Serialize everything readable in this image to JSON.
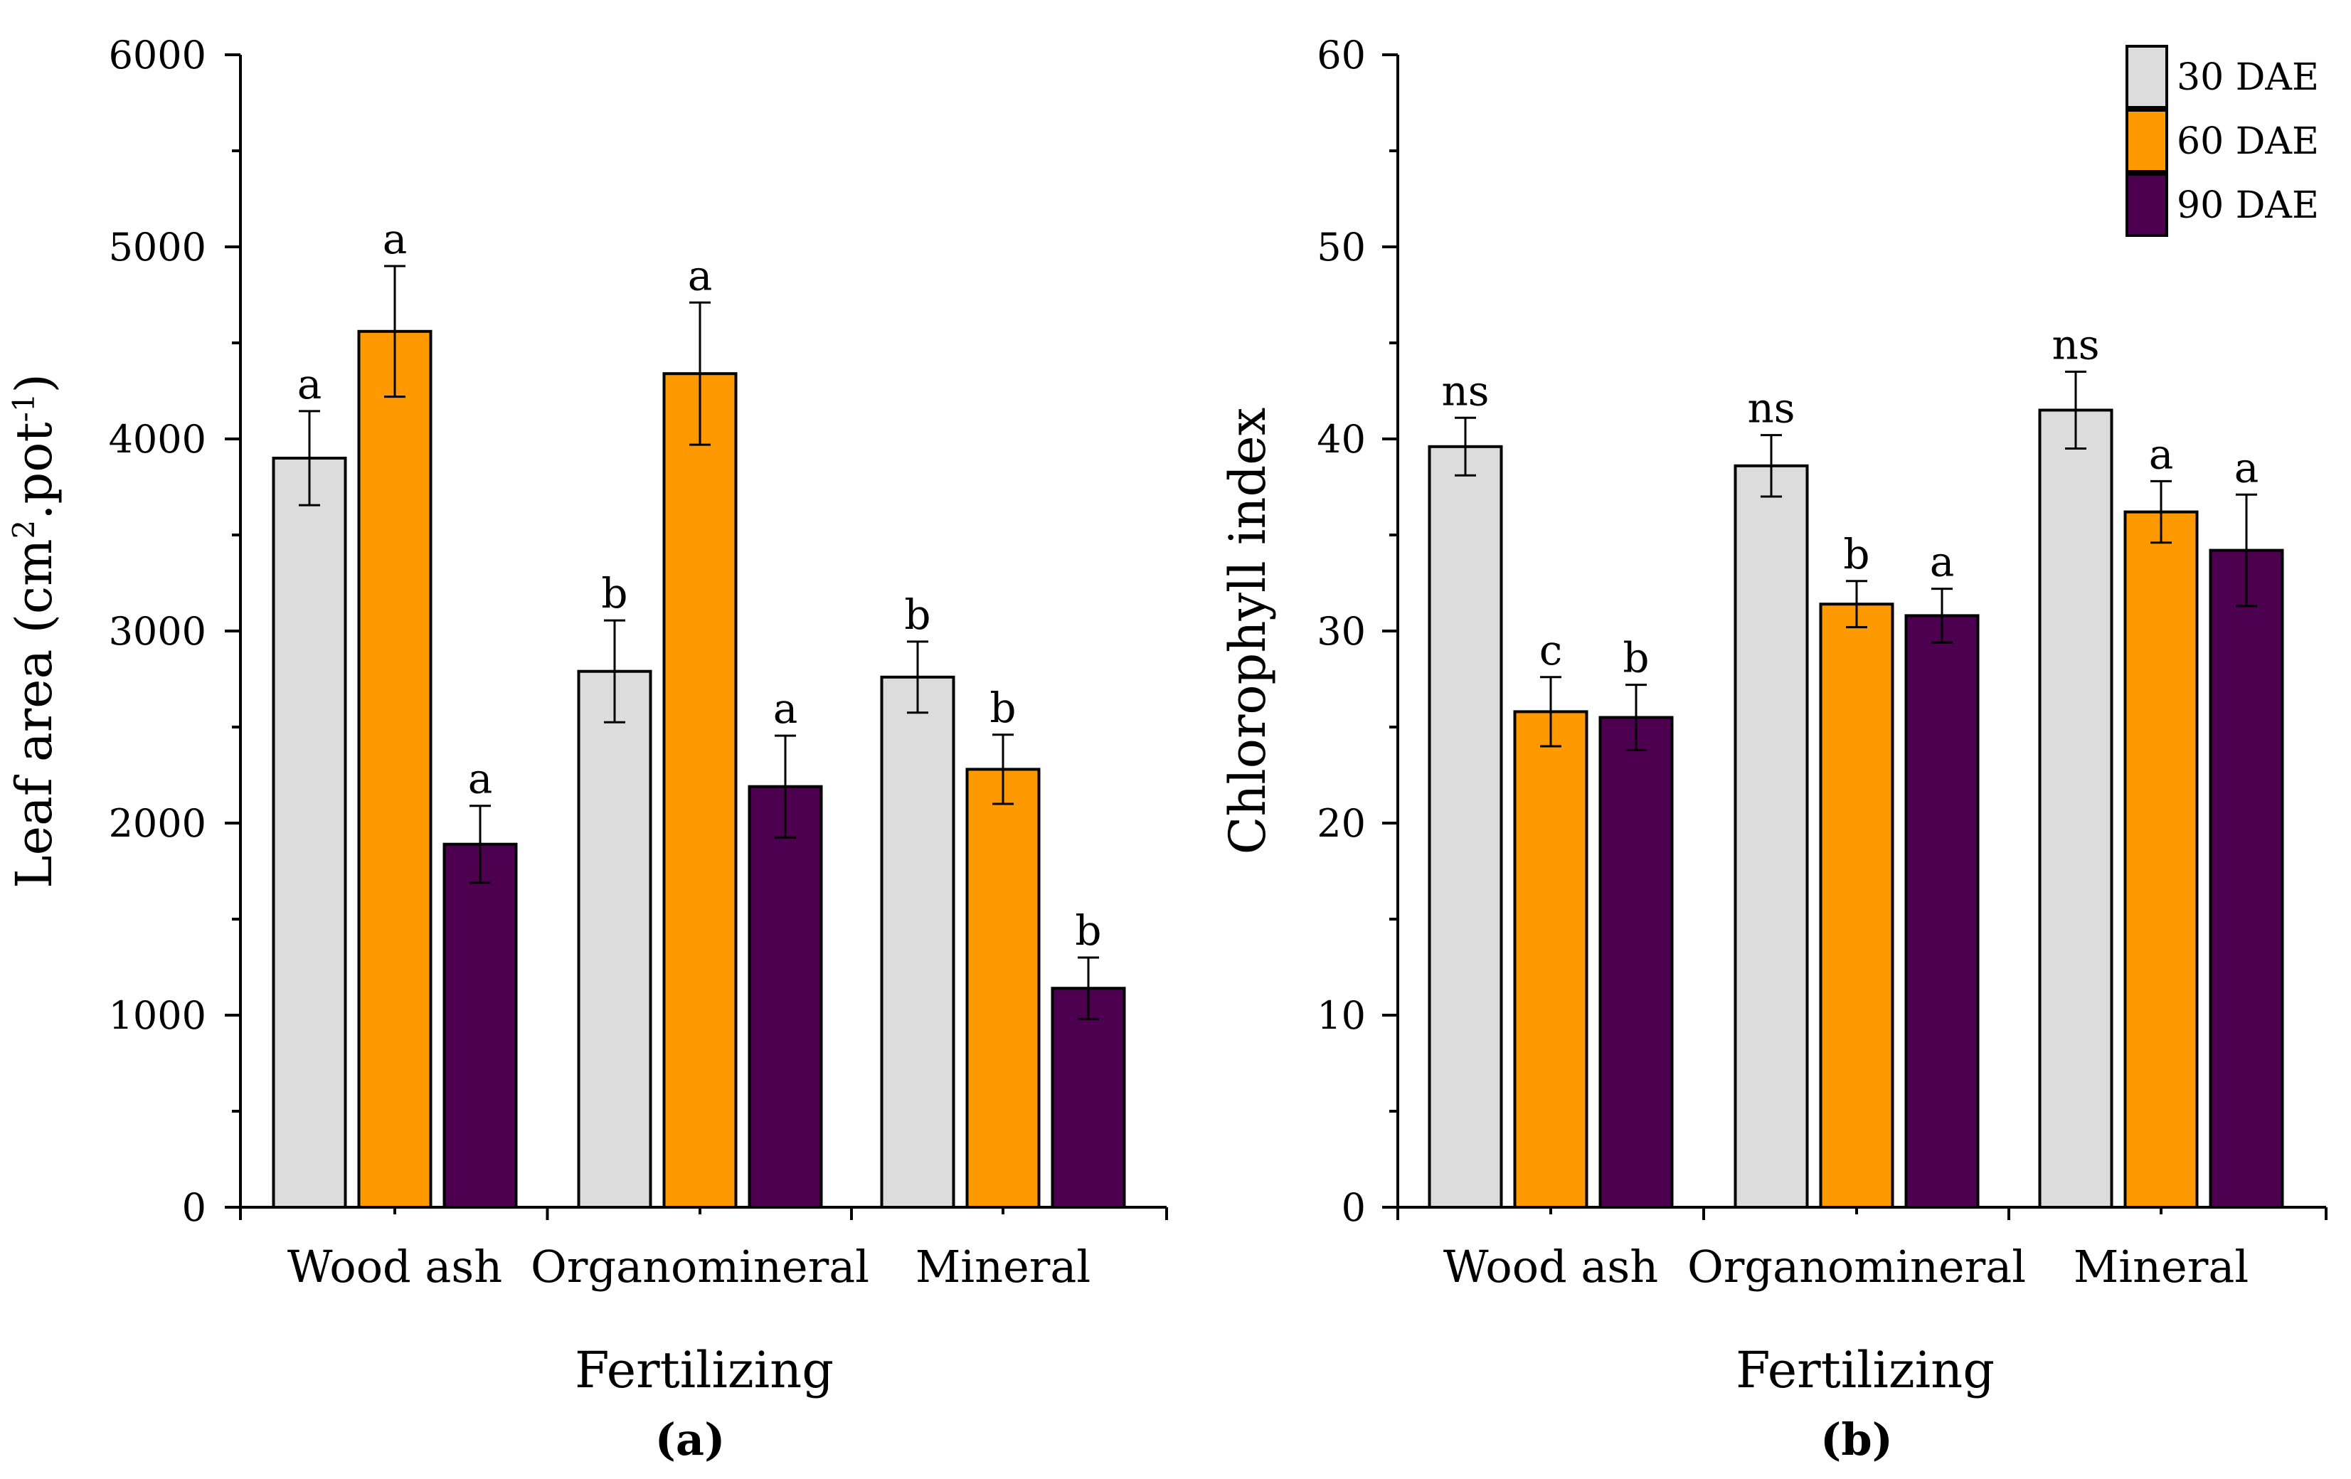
{
  "chart_data": [
    {
      "type": "bar",
      "panel_label": "(a)",
      "xlabel": "Fertilizing",
      "ylabel": "Leaf area (cm²·pot⁻¹)",
      "ylabel_parts": {
        "base": "Leaf area (cm",
        "sup1": "2",
        "mid": ".pot",
        "sup2": "-1",
        "end": ")"
      },
      "ylim": [
        0,
        6000
      ],
      "yticks": [
        0,
        1000,
        2000,
        3000,
        4000,
        5000,
        6000
      ],
      "categories": [
        "Wood ash",
        "Organomineral",
        "Mineral"
      ],
      "series": [
        {
          "name": "30 DAE",
          "color": "#dcdcdc",
          "values": [
            3900,
            2790,
            2760
          ],
          "errors": [
            245,
            265,
            185
          ],
          "letters": [
            "a",
            "b",
            "b"
          ]
        },
        {
          "name": "60 DAE",
          "color": "#ff9900",
          "values": [
            4560,
            4340,
            2280
          ],
          "errors": [
            340,
            370,
            180
          ],
          "letters": [
            "a",
            "a",
            "b"
          ]
        },
        {
          "name": "90 DAE",
          "color": "#4d004f",
          "values": [
            1890,
            2190,
            1140
          ],
          "errors": [
            200,
            265,
            160
          ],
          "letters": [
            "a",
            "a",
            "b"
          ]
        }
      ]
    },
    {
      "type": "bar",
      "panel_label": "(b)",
      "xlabel": "Fertilizing",
      "ylabel": "Chlorophyll index",
      "ylim": [
        0,
        60
      ],
      "yticks": [
        0,
        10,
        20,
        30,
        40,
        50,
        60
      ],
      "categories": [
        "Wood ash",
        "Organomineral",
        "Mineral"
      ],
      "series": [
        {
          "name": "30 DAE",
          "color": "#dcdcdc",
          "values": [
            39.6,
            38.6,
            41.5
          ],
          "errors": [
            1.5,
            1.6,
            2.0
          ],
          "letters": [
            "ns",
            "ns",
            "ns"
          ]
        },
        {
          "name": "60 DAE",
          "color": "#ff9900",
          "values": [
            25.8,
            31.4,
            36.2
          ],
          "errors": [
            1.8,
            1.2,
            1.6
          ],
          "letters": [
            "c",
            "b",
            "a"
          ]
        },
        {
          "name": "90 DAE",
          "color": "#4d004f",
          "values": [
            25.5,
            30.8,
            34.2
          ],
          "errors": [
            1.7,
            1.4,
            2.9
          ],
          "letters": [
            "b",
            "a",
            "a"
          ]
        }
      ],
      "legend": {
        "position": "top-right",
        "entries": [
          "30 DAE",
          "60 DAE",
          "90 DAE"
        ]
      }
    }
  ]
}
